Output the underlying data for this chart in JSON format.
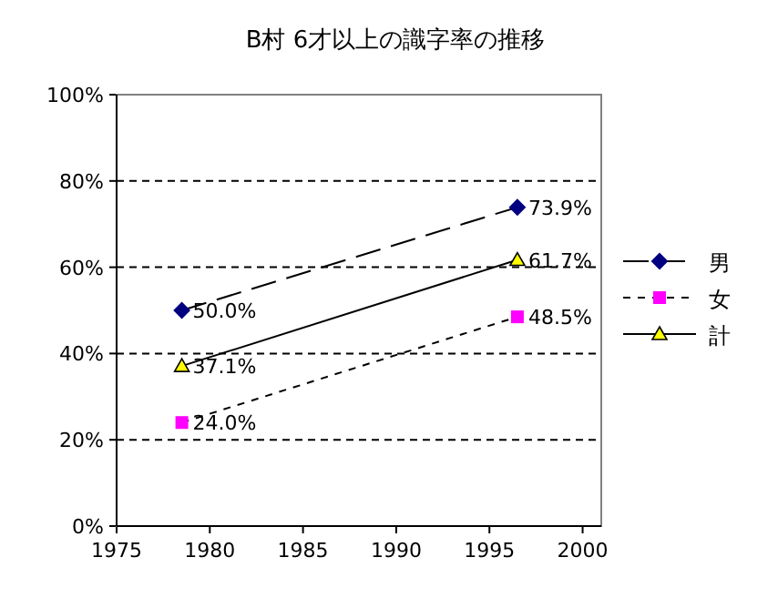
{
  "chart_data": {
    "type": "line",
    "title": "B村 6才以上の識字率の推移",
    "x": [
      1978.5,
      1996.5
    ],
    "xlim": [
      1975,
      2001
    ],
    "xticks": [
      1975,
      1980,
      1985,
      1990,
      1995,
      2000
    ],
    "ylim": [
      0,
      100
    ],
    "yticks": [
      {
        "value": 0,
        "label": "0%"
      },
      {
        "value": 20,
        "label": "20%"
      },
      {
        "value": 40,
        "label": "40%"
      },
      {
        "value": 60,
        "label": "60%"
      },
      {
        "value": 80,
        "label": "80%"
      },
      {
        "value": 100,
        "label": "100%"
      }
    ],
    "grid": "y",
    "legend": "right",
    "series": [
      {
        "name": "男",
        "color": "#000080",
        "values": [
          50.0,
          73.9
        ],
        "value_labels": [
          "50.0%",
          "73.9%"
        ],
        "marker": "diamond",
        "line_style": "dashed"
      },
      {
        "name": "女",
        "color": "#ff00ff",
        "values": [
          24.0,
          48.5
        ],
        "value_labels": [
          "24.0%",
          "48.5%"
        ],
        "marker": "square",
        "line_style": "dotted"
      },
      {
        "name": "計",
        "color": "#ffff00",
        "values": [
          37.1,
          61.7
        ],
        "value_labels": [
          "37.1%",
          "61.7%"
        ],
        "marker": "triangle",
        "line_style": "solid"
      }
    ]
  }
}
